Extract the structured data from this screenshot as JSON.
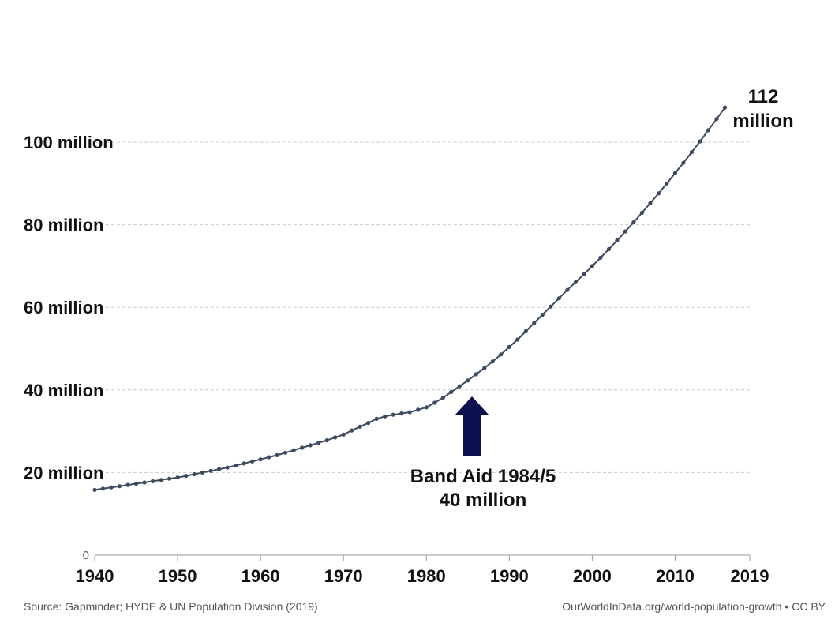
{
  "chart_data": {
    "type": "line",
    "title": "",
    "xlabel": "",
    "ylabel": "",
    "xlim": [
      1940,
      2019
    ],
    "ylim": [
      0,
      112
    ],
    "grid": true,
    "y_ticks": [
      {
        "value": 0,
        "label": "0"
      },
      {
        "value": 20,
        "label": "20 million"
      },
      {
        "value": 40,
        "label": "40 million"
      },
      {
        "value": 60,
        "label": "60 million"
      },
      {
        "value": 80,
        "label": "80 million"
      },
      {
        "value": 100,
        "label": "100 million"
      }
    ],
    "x_ticks": [
      {
        "value": 1940,
        "label": "1940"
      },
      {
        "value": 1950,
        "label": "1950"
      },
      {
        "value": 1960,
        "label": "1960"
      },
      {
        "value": 1970,
        "label": "1970"
      },
      {
        "value": 1980,
        "label": "1980"
      },
      {
        "value": 1990,
        "label": "1990"
      },
      {
        "value": 2000,
        "label": "2000"
      },
      {
        "value": 2010,
        "label": "2010"
      },
      {
        "value": 2019,
        "label": "2019"
      }
    ],
    "series": [
      {
        "color": "#3d4a60",
        "x": [
          1940,
          1941,
          1942,
          1943,
          1944,
          1945,
          1946,
          1947,
          1948,
          1949,
          1950,
          1951,
          1952,
          1953,
          1954,
          1955,
          1956,
          1957,
          1958,
          1959,
          1960,
          1961,
          1962,
          1963,
          1964,
          1965,
          1966,
          1967,
          1968,
          1969,
          1970,
          1971,
          1972,
          1973,
          1974,
          1975,
          1976,
          1977,
          1978,
          1979,
          1980,
          1981,
          1982,
          1983,
          1984,
          1985,
          1986,
          1987,
          1988,
          1989,
          1990,
          1991,
          1992,
          1993,
          1994,
          1995,
          1996,
          1997,
          1998,
          1999,
          2000,
          2001,
          2002,
          2003,
          2004,
          2005,
          2006,
          2007,
          2008,
          2009,
          2010,
          2011,
          2012,
          2013,
          2014,
          2015,
          2016
        ],
        "y": [
          15.8,
          16.1,
          16.4,
          16.7,
          17.0,
          17.3,
          17.6,
          17.9,
          18.2,
          18.5,
          18.8,
          19.2,
          19.6,
          20.0,
          20.4,
          20.8,
          21.2,
          21.7,
          22.2,
          22.7,
          23.2,
          23.7,
          24.2,
          24.8,
          25.4,
          26.0,
          26.6,
          27.2,
          27.8,
          28.5,
          29.2,
          30.2,
          31.1,
          32.0,
          33.0,
          33.6,
          34.0,
          34.3,
          34.6,
          35.2,
          35.8,
          36.9,
          38.1,
          39.5,
          40.9,
          42.3,
          43.8,
          45.3,
          46.9,
          48.6,
          50.4,
          52.2,
          54.2,
          56.2,
          58.2,
          60.2,
          62.2,
          64.2,
          66.1,
          68.0,
          70.0,
          72.0,
          74.1,
          76.2,
          78.4,
          80.6,
          82.9,
          85.2,
          87.6,
          90.0,
          92.5,
          95.0,
          97.6,
          100.2,
          102.9,
          105.6,
          108.4
        ]
      }
    ],
    "annotations": {
      "band_aid_line1": "Band Aid 1984/5",
      "band_aid_line2": "40 million",
      "end_line1": "112",
      "end_line2": "million"
    },
    "arrow_color": "#0d1150"
  },
  "footer": {
    "source": "Source: Gapminder; HYDE & UN Population Division (2019)",
    "credit": "OurWorldInData.org/world-population-growth • CC BY"
  }
}
